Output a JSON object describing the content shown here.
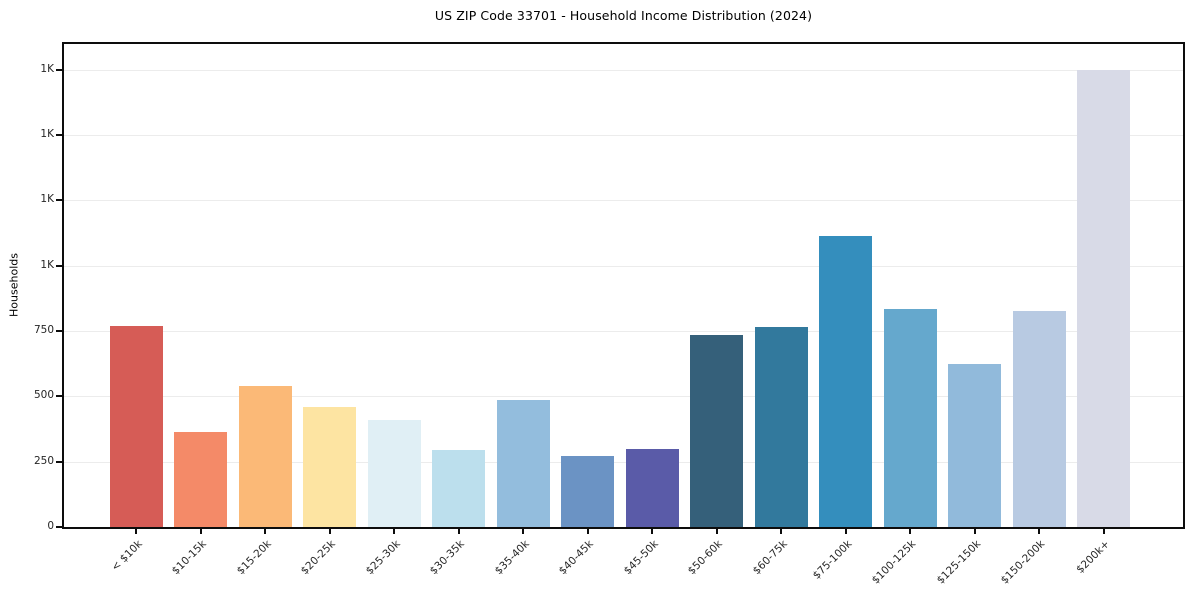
{
  "chart_data": {
    "type": "bar",
    "title": "US ZIP Code 33701 - Household Income Distribution (2024)",
    "xlabel": "",
    "ylabel": "Households",
    "categories": [
      "< $10k",
      "$10-15k",
      "$15-20k",
      "$20-25k",
      "$25-30k",
      "$30-35k",
      "$35-40k",
      "$40-45k",
      "$45-50k",
      "$50-60k",
      "$60-75k",
      "$75-100k",
      "$100-125k",
      "$125-150k",
      "$150-200k",
      "$200k+"
    ],
    "values": [
      770,
      365,
      540,
      460,
      410,
      295,
      485,
      270,
      300,
      735,
      765,
      1115,
      835,
      625,
      825,
      1750
    ],
    "bar_colors": [
      "#d65c56",
      "#f48a68",
      "#fbb977",
      "#fde4a2",
      "#e0eff5",
      "#bcdfed",
      "#93bddd",
      "#6b93c4",
      "#5a5ba8",
      "#35607a",
      "#32799d",
      "#348ebd",
      "#65a8cd",
      "#91badb",
      "#b8cae2",
      "#d8dae7"
    ],
    "ylim": [
      0,
      1848
    ],
    "y_ticks": [
      {
        "value": 0,
        "label": "0"
      },
      {
        "value": 250,
        "label": "250"
      },
      {
        "value": 500,
        "label": "500"
      },
      {
        "value": 750,
        "label": "750"
      },
      {
        "value": 1000,
        "label": "1K"
      },
      {
        "value": 1250,
        "label": "1K"
      },
      {
        "value": 1500,
        "label": "1K"
      },
      {
        "value": 1750,
        "label": "1K"
      }
    ],
    "grid": "horizontal",
    "legend": "none",
    "axis_color": "#0d0d0d",
    "grid_color": "#ececec",
    "background_color": "#ffffff"
  }
}
